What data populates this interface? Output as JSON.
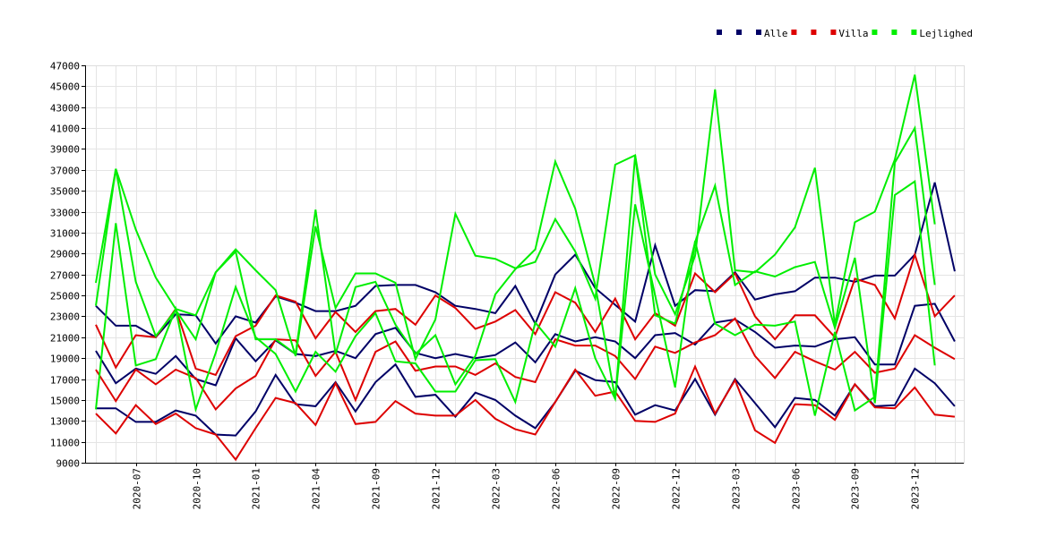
{
  "chart_data": {
    "type": "line",
    "grid": true,
    "legend_position": "top-right",
    "ylim": [
      9000,
      47000
    ],
    "y_ticks": [
      9000,
      11000,
      13000,
      15000,
      17000,
      19000,
      21000,
      23000,
      25000,
      27000,
      29000,
      31000,
      33000,
      35000,
      37000,
      39000,
      41000,
      43000,
      45000,
      47000
    ],
    "x_tick_labels": [
      "2020-07",
      "2020-10",
      "2021-01",
      "2021-04",
      "2021-09",
      "2021-12",
      "2022-03",
      "2022-06",
      "2022-09",
      "2022-12",
      "2023-03",
      "2023-06",
      "2023-09",
      "2023-12"
    ],
    "x_tick_index": [
      2,
      5,
      8,
      11,
      14,
      17,
      20,
      23,
      26,
      29,
      32,
      35,
      38,
      41
    ],
    "legend": [
      {
        "name": "Alle",
        "color": "#000066"
      },
      {
        "name": "Villa",
        "color": "#dd0000"
      },
      {
        "name": "Lejlighed",
        "color": "#00ee00"
      }
    ],
    "series": [
      {
        "group": "Alle",
        "color": "#000066",
        "values": [
          24000,
          22100,
          22100,
          21000,
          23200,
          23100,
          20400,
          23000,
          22400,
          24900,
          24300,
          23500,
          23500,
          24000,
          25900,
          26000,
          26000,
          25300,
          24000,
          23700,
          23300,
          25900,
          22300,
          27000,
          28900,
          25700,
          24100,
          22500,
          29800,
          24000,
          25500,
          25400,
          27200,
          24600,
          25100,
          25400,
          26700,
          26700,
          26300,
          26900,
          26900,
          28900,
          35800,
          27300
        ]
      },
      {
        "group": "Alle",
        "color": "#000066",
        "values": [
          19700,
          16600,
          18000,
          17500,
          19200,
          17000,
          16400,
          20900,
          18700,
          20700,
          19400,
          19200,
          19700,
          19000,
          21300,
          21900,
          19500,
          19000,
          19400,
          19000,
          19300,
          20500,
          18600,
          21300,
          20600,
          21000,
          20600,
          19000,
          21200,
          21400,
          20300,
          22400,
          22700,
          21500,
          20000,
          20200,
          20100,
          20800,
          21000,
          18400,
          18400,
          24000,
          24200,
          20600
        ]
      },
      {
        "group": "Alle",
        "color": "#000066",
        "values": [
          14200,
          14200,
          12900,
          12900,
          14000,
          13500,
          11700,
          11600,
          13900,
          17400,
          14600,
          14400,
          16700,
          13900,
          16700,
          18400,
          15300,
          15500,
          13400,
          15700,
          15000,
          13500,
          12300,
          14800,
          17800,
          16900,
          16700,
          13600,
          14500,
          14000,
          17000,
          13600,
          17000,
          14700,
          12400,
          15200,
          15000,
          13500,
          16500,
          14400,
          14500,
          18000,
          16600,
          14400
        ]
      },
      {
        "group": "Villa",
        "color": "#dd0000",
        "values": [
          22200,
          18100,
          21200,
          21000,
          23700,
          18000,
          17400,
          21100,
          22100,
          25000,
          24400,
          20900,
          23400,
          21500,
          23500,
          23700,
          22200,
          25000,
          23800,
          21800,
          22500,
          23600,
          21300,
          25300,
          24300,
          21500,
          24700,
          20800,
          23300,
          22100,
          27100,
          25300,
          27100,
          23000,
          20800,
          23100,
          23100,
          21000,
          26600,
          26000,
          22800,
          28900,
          23000,
          25000
        ]
      },
      {
        "group": "Villa",
        "color": "#dd0000",
        "values": [
          17900,
          14900,
          17900,
          16500,
          17900,
          17100,
          14100,
          16100,
          17300,
          20800,
          20700,
          17300,
          19600,
          15000,
          19600,
          20600,
          17800,
          18200,
          18200,
          17400,
          18500,
          17200,
          16700,
          20800,
          20200,
          20200,
          19200,
          17000,
          20100,
          19500,
          20500,
          21200,
          22800,
          19200,
          17100,
          19600,
          18700,
          17900,
          19600,
          17600,
          18000,
          21200,
          20000,
          18900
        ]
      },
      {
        "group": "Villa",
        "color": "#dd0000",
        "values": [
          13700,
          11800,
          14500,
          12700,
          13700,
          12300,
          11700,
          9300,
          12300,
          15200,
          14700,
          12600,
          16600,
          12700,
          12900,
          14900,
          13700,
          13500,
          13500,
          15000,
          13200,
          12200,
          11700,
          14800,
          17900,
          15400,
          15800,
          13000,
          12900,
          13700,
          18200,
          13700,
          16900,
          12100,
          10900,
          14600,
          14500,
          13100,
          16500,
          14300,
          14200,
          16200,
          13600,
          13400
        ]
      },
      {
        "group": "Lejlighed",
        "color": "#00ee00",
        "values": [
          26200,
          37100,
          31300,
          26700,
          23700,
          23100,
          27200,
          29400,
          27400,
          25500,
          19200,
          31600,
          23800,
          27100,
          27100,
          26200,
          18900,
          22700,
          32800,
          28800,
          28500,
          27600,
          28200,
          32300,
          29200,
          24700,
          37500,
          38400,
          27000,
          23200,
          28800,
          44700,
          27400,
          27200,
          28900,
          31500,
          37200,
          22200,
          32000,
          33000,
          38000,
          46100,
          31800
        ]
      },
      {
        "group": "Lejlighed",
        "color": "#00ee00",
        "values": [
          24000,
          37100,
          26300,
          21100,
          23600,
          20800,
          27200,
          29200,
          20800,
          20800,
          19400,
          33200,
          19400,
          25800,
          26300,
          22200,
          19400,
          21200,
          16500,
          19200,
          25100,
          27500,
          29400,
          37800,
          33300,
          26000,
          15100,
          38400,
          23100,
          22300,
          30100,
          35500,
          26000,
          27300,
          26800,
          27700,
          28200,
          21900,
          28600,
          14700,
          34600,
          35900,
          18300
        ]
      },
      {
        "group": "Lejlighed",
        "color": "#00ee00",
        "values": [
          14100,
          31900,
          18300,
          18900,
          23700,
          14100,
          19500,
          25800,
          21000,
          19400,
          15800,
          19600,
          17700,
          21100,
          23300,
          18700,
          18500,
          15800,
          15800,
          18800,
          18900,
          14800,
          22400,
          20100,
          25700,
          19000,
          15100,
          33700,
          25000,
          16200,
          30200,
          22300,
          21200,
          22200,
          22100,
          22500,
          13500,
          21500,
          14000,
          15300,
          37700,
          41000,
          26000
        ]
      }
    ]
  }
}
